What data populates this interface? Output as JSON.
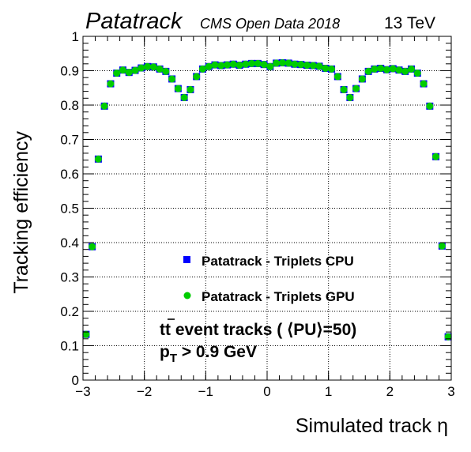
{
  "header": {
    "title": "Patatrack",
    "subtitle": "CMS Open Data 2018",
    "energy": "13 TeV"
  },
  "annotation": {
    "line1_prefix": "t",
    "line1_bar": "t",
    "line1_rest": " event tracks ( ⟨PU⟩=50)",
    "line2_p": "p",
    "line2_sub": "T",
    "line2_rest": " > 0.9 GeV"
  },
  "chart_data": {
    "type": "scatter",
    "title": "",
    "xlabel": "Simulated track η",
    "ylabel": "Tracking efficiency",
    "xlim": [
      -3,
      3
    ],
    "ylim": [
      0,
      1
    ],
    "x_ticks": [
      "−3",
      "−2",
      "−1",
      "0",
      "1",
      "2",
      "3"
    ],
    "y_ticks": [
      "0",
      "0.1",
      "0.2",
      "0.3",
      "0.4",
      "0.5",
      "0.6",
      "0.7",
      "0.8",
      "0.9",
      "1"
    ],
    "grid": true,
    "legend_position": "center",
    "x": [
      -2.95,
      -2.85,
      -2.75,
      -2.65,
      -2.55,
      -2.45,
      -2.35,
      -2.25,
      -2.15,
      -2.05,
      -1.95,
      -1.85,
      -1.75,
      -1.65,
      -1.55,
      -1.45,
      -1.35,
      -1.25,
      -1.15,
      -1.05,
      -0.95,
      -0.85,
      -0.75,
      -0.65,
      -0.55,
      -0.45,
      -0.35,
      -0.25,
      -0.15,
      -0.05,
      0.05,
      0.15,
      0.25,
      0.35,
      0.45,
      0.55,
      0.65,
      0.75,
      0.85,
      0.95,
      1.05,
      1.15,
      1.25,
      1.35,
      1.45,
      1.55,
      1.65,
      1.75,
      1.85,
      1.95,
      2.05,
      2.15,
      2.25,
      2.35,
      2.45,
      2.55,
      2.65,
      2.75,
      2.85,
      2.95
    ],
    "series": [
      {
        "name": "Patatrack - Triplets CPU",
        "marker": "square",
        "color": "#0000ff",
        "values": [
          0.133,
          0.388,
          0.643,
          0.797,
          0.862,
          0.893,
          0.902,
          0.895,
          0.901,
          0.908,
          0.912,
          0.911,
          0.905,
          0.898,
          0.876,
          0.848,
          0.822,
          0.845,
          0.883,
          0.905,
          0.912,
          0.917,
          0.915,
          0.917,
          0.919,
          0.916,
          0.919,
          0.921,
          0.921,
          0.918,
          0.912,
          0.922,
          0.923,
          0.922,
          0.919,
          0.918,
          0.916,
          0.915,
          0.913,
          0.907,
          0.905,
          0.883,
          0.845,
          0.822,
          0.848,
          0.876,
          0.898,
          0.905,
          0.907,
          0.903,
          0.906,
          0.902,
          0.898,
          0.905,
          0.893,
          0.862,
          0.797,
          0.65,
          0.39,
          0.126
        ]
      },
      {
        "name": "Patatrack - Triplets GPU",
        "marker": "circle",
        "color": "#00cc00",
        "values": [
          0.133,
          0.388,
          0.643,
          0.797,
          0.862,
          0.893,
          0.902,
          0.895,
          0.901,
          0.908,
          0.912,
          0.911,
          0.905,
          0.898,
          0.876,
          0.848,
          0.822,
          0.845,
          0.883,
          0.905,
          0.912,
          0.917,
          0.915,
          0.917,
          0.919,
          0.916,
          0.919,
          0.921,
          0.921,
          0.918,
          0.912,
          0.922,
          0.923,
          0.922,
          0.919,
          0.918,
          0.916,
          0.915,
          0.913,
          0.907,
          0.905,
          0.883,
          0.845,
          0.822,
          0.848,
          0.876,
          0.898,
          0.905,
          0.907,
          0.903,
          0.906,
          0.902,
          0.898,
          0.905,
          0.893,
          0.862,
          0.797,
          0.65,
          0.39,
          0.126
        ]
      }
    ]
  }
}
